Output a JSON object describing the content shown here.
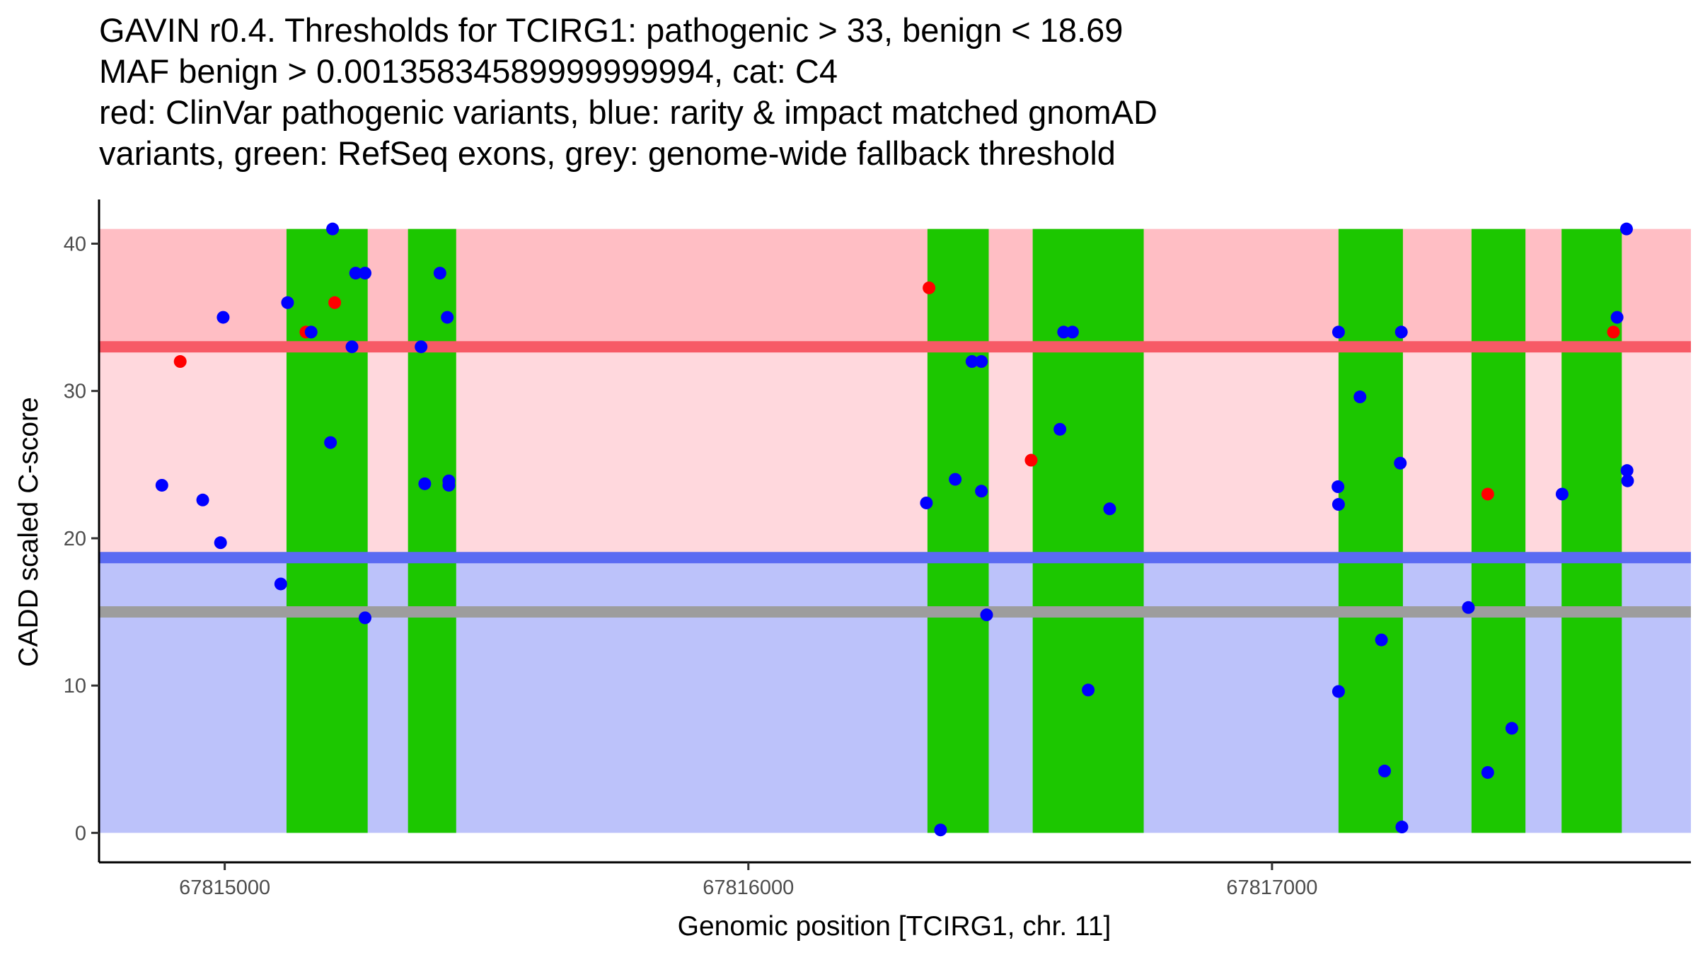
{
  "title_lines": [
    "GAVIN r0.4. Thresholds for TCIRG1: pathogenic > 33, benign < 18.69",
    "MAF benign > 0.00135834589999999994, cat: C4",
    "red: ClinVar pathogenic variants, blue: rarity & impact matched gnomAD",
    "variants, green: RefSeq exons, grey: genome-wide fallback threshold"
  ],
  "colors": {
    "pathogenic_zone": "#ffbec4",
    "mid_zone": "#ffd8dd",
    "benign_zone": "#bcc2fa",
    "exon": "#1cc700",
    "pathogenic_line": "#f75a66",
    "benign_line": "#5a6bf2",
    "fallback_line": "#9d9d9d",
    "clinvar_point": "#ff0000",
    "gnomad_point": "#0000ff"
  },
  "chart_data": {
    "type": "scatter",
    "title": "GAVIN r0.4. Thresholds for TCIRG1: pathogenic > 33, benign < 18.69",
    "xlabel": "Genomic position [TCIRG1, chr. 11]",
    "ylabel": "CADD scaled C-score",
    "xlim": [
      67814760,
      67817800
    ],
    "ylim": [
      -2,
      43
    ],
    "xticks": [
      67815000,
      67816000,
      67817000
    ],
    "xtick_labels": [
      "67815000",
      "67816000",
      "67817000"
    ],
    "yticks": [
      0,
      10,
      20,
      30,
      40
    ],
    "ytick_labels": [
      "0",
      "10",
      "20",
      "30",
      "40"
    ],
    "grid": false,
    "thresholds": {
      "pathogenic": 33,
      "benign": 18.69,
      "fallback": 15
    },
    "zone_top": 41,
    "exons": [
      [
        67815118,
        67815273
      ],
      [
        67815350,
        67815442
      ],
      [
        67816342,
        67816459
      ],
      [
        67816543,
        67816755
      ],
      [
        67817127,
        67817250
      ],
      [
        67817381,
        67817484
      ],
      [
        67817553,
        67817668
      ]
    ],
    "series": [
      {
        "name": "ClinVar pathogenic variants",
        "color": "red",
        "points": [
          [
            67814915,
            32
          ],
          [
            67815155,
            34
          ],
          [
            67815210,
            36
          ],
          [
            67816345,
            37
          ],
          [
            67816540,
            25.3
          ],
          [
            67817412,
            23
          ],
          [
            67817652,
            34
          ]
        ]
      },
      {
        "name": "rarity & impact matched gnomAD variants",
        "color": "blue",
        "points": [
          [
            67814880,
            23.6
          ],
          [
            67814958,
            22.6
          ],
          [
            67814992,
            19.7
          ],
          [
            67814997,
            35
          ],
          [
            67815107,
            16.9
          ],
          [
            67815120,
            36
          ],
          [
            67815165,
            34
          ],
          [
            67815202,
            26.5
          ],
          [
            67815206,
            41
          ],
          [
            67815243,
            33
          ],
          [
            67815250,
            38
          ],
          [
            67815268,
            38
          ],
          [
            67815268,
            14.6
          ],
          [
            67815375,
            33
          ],
          [
            67815382,
            23.7
          ],
          [
            67815411,
            38
          ],
          [
            67815425,
            35
          ],
          [
            67815428,
            23.9
          ],
          [
            67815428,
            23.6
          ],
          [
            67816340,
            22.4
          ],
          [
            67816367,
            0.2
          ],
          [
            67816395,
            24
          ],
          [
            67816427,
            32
          ],
          [
            67816445,
            32
          ],
          [
            67816445,
            23.2
          ],
          [
            67816455,
            14.8
          ],
          [
            67816595,
            27.4
          ],
          [
            67816602,
            34
          ],
          [
            67816619,
            34
          ],
          [
            67816649,
            9.7
          ],
          [
            67816690,
            22
          ],
          [
            67817127,
            34
          ],
          [
            67817126,
            23.5
          ],
          [
            67817127,
            22.3
          ],
          [
            67817127,
            9.6
          ],
          [
            67817168,
            29.6
          ],
          [
            67817209,
            13.1
          ],
          [
            67817215,
            4.2
          ],
          [
            67817245,
            25.1
          ],
          [
            67817247,
            34
          ],
          [
            67817248,
            0.4
          ],
          [
            67817375,
            15.3
          ],
          [
            67817412,
            4.1
          ],
          [
            67817458,
            7.1
          ],
          [
            67817554,
            23
          ],
          [
            67817659,
            35
          ],
          [
            67817677,
            41
          ],
          [
            67817678,
            24.6
          ],
          [
            67817679,
            23.9
          ]
        ]
      }
    ]
  }
}
